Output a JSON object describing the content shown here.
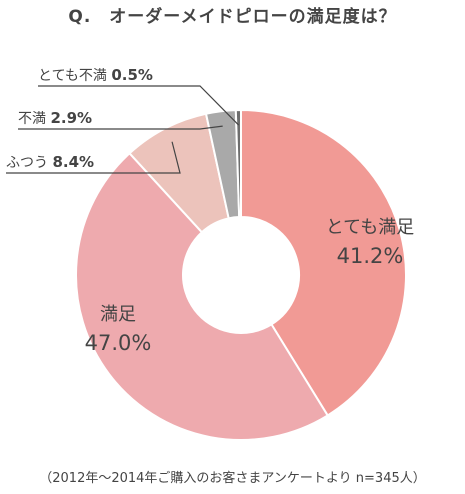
{
  "title": "Q.　オーダーメイドピローの満足度は？",
  "source": "（2012年～2014年ご購入のお客さまアンケートより n=345人）",
  "chart_data": {
    "type": "pie",
    "donut": true,
    "title": "Q.　オーダーメイドピローの満足度は？",
    "categories": [
      "とても満足",
      "満足",
      "ふつう",
      "不満",
      "とても不満"
    ],
    "values": [
      41.2,
      47.0,
      8.4,
      2.9,
      0.5
    ],
    "value_labels": [
      "41.2%",
      "47.0%",
      "8.4%",
      "2.9%",
      "0.5%"
    ],
    "colors": [
      "#f19a95",
      "#eeaaae",
      "#ecc3bb",
      "#a9a9a9",
      "#6e6e6e"
    ],
    "legend": "none"
  }
}
